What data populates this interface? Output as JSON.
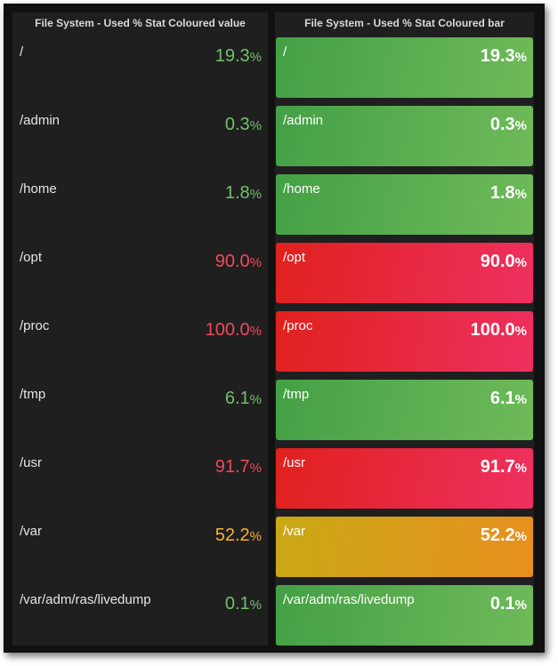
{
  "colors": {
    "green": "#73bf69",
    "red": "#f2495c",
    "yellow": "#fade2a",
    "orange": "#ffb357"
  },
  "left_panel": {
    "title": "File System - Used % Stat Coloured value"
  },
  "right_panel": {
    "title": "File System - Used % Stat Coloured bar"
  },
  "unit": "%",
  "filesystems": [
    {
      "name": "/",
      "value": "19.3",
      "status": "green"
    },
    {
      "name": "/admin",
      "value": "0.3",
      "status": "green"
    },
    {
      "name": "/home",
      "value": "1.8",
      "status": "green"
    },
    {
      "name": "/opt",
      "value": "90.0",
      "status": "red"
    },
    {
      "name": "/proc",
      "value": "100.0",
      "status": "red"
    },
    {
      "name": "/tmp",
      "value": "6.1",
      "status": "green"
    },
    {
      "name": "/usr",
      "value": "91.7",
      "status": "red"
    },
    {
      "name": "/var",
      "value": "52.2",
      "status": "yellow"
    },
    {
      "name": "/var/adm/ras/livedump",
      "value": "0.1",
      "status": "green"
    }
  ]
}
